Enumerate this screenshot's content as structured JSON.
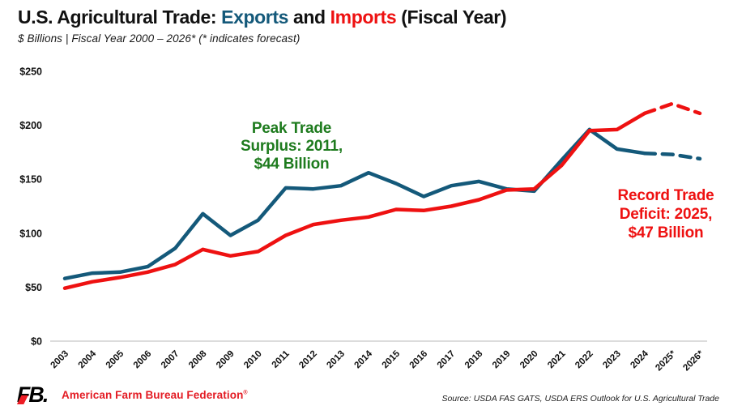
{
  "header": {
    "title_prefix": "U.S. Agricultural Trade: ",
    "title_exports": "Exports",
    "title_and": " and ",
    "title_imports": "Imports",
    "title_suffix": " (Fiscal Year)",
    "subtitle": "$ Billions | Fiscal Year 2000 – 2026* (* indicates forecast)"
  },
  "annotations": {
    "surplus": {
      "line1": "Peak Trade",
      "line2": "Surplus: 2011,",
      "line3": "$44 Billion",
      "color": "#1e7b1e"
    },
    "deficit": {
      "line1": "Record Trade",
      "line2": "Deficit: 2025,",
      "line3": "$47 Billion",
      "color": "#ee1111"
    }
  },
  "footer": {
    "org_name": "American Farm Bureau Federation",
    "reg_mark": "®",
    "source": "Source: USDA FAS GATS, USDA ERS Outlook for U.S. Agricultural Trade"
  },
  "chart_data": {
    "type": "line",
    "title": "U.S. Agricultural Trade: Exports and Imports (Fiscal Year)",
    "subtitle": "$ Billions | Fiscal Year 2000 - 2026* (* indicates forecast)",
    "x": [
      "2003",
      "2004",
      "2005",
      "2006",
      "2007",
      "2008",
      "2009",
      "2010",
      "2011",
      "2012",
      "2013",
      "2014",
      "2015",
      "2016",
      "2017",
      "2018",
      "2019",
      "2020",
      "2021",
      "2022",
      "2023",
      "2024",
      "2025*",
      "2026*"
    ],
    "series": [
      {
        "name": "Exports",
        "color": "#14597a",
        "forecast_from_index": 21,
        "values": [
          58,
          63,
          64,
          69,
          86,
          118,
          98,
          112,
          142,
          141,
          144,
          156,
          146,
          134,
          144,
          148,
          141,
          139,
          168,
          196,
          178,
          174,
          173,
          169
        ]
      },
      {
        "name": "Imports",
        "color": "#ee1111",
        "forecast_from_index": 21,
        "values": [
          49,
          55,
          59,
          64,
          71,
          85,
          79,
          83,
          98,
          108,
          112,
          115,
          122,
          121,
          125,
          131,
          140,
          141,
          163,
          195,
          196,
          211,
          220,
          211
        ]
      }
    ],
    "ylabel": "$ Billions",
    "ylim": [
      0,
      250
    ],
    "yticks": [
      0,
      50,
      100,
      150,
      200,
      250
    ],
    "ytick_labels": [
      "$0",
      "$50",
      "$100",
      "$150",
      "$200",
      "$250"
    ],
    "grid": false,
    "legend": "title-colored-words",
    "forecast_style": "dashed"
  }
}
